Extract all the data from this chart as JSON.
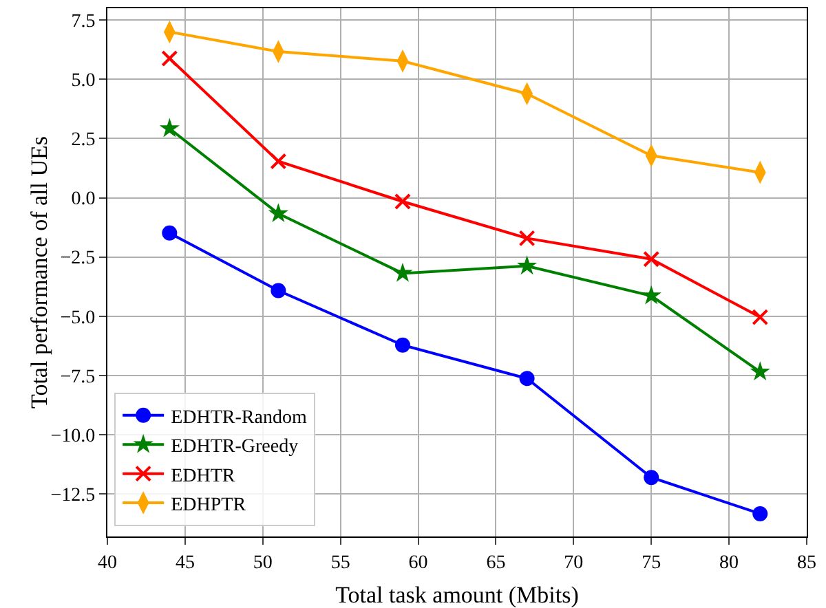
{
  "chart_data": {
    "type": "line",
    "xlabel": "Total task amount (Mbits)",
    "ylabel": "Total performance of all UEs",
    "x": [
      44,
      51,
      59,
      67,
      75,
      82
    ],
    "series": [
      {
        "name": "EDHTR-Random",
        "color": "#0000ff",
        "marker": "circle",
        "values": [
          -1.49,
          -3.92,
          -6.22,
          -7.63,
          -11.81,
          -13.34
        ]
      },
      {
        "name": "EDHTR-Greedy",
        "color": "#008000",
        "marker": "star",
        "values": [
          2.92,
          -0.67,
          -3.19,
          -2.88,
          -4.14,
          -7.35
        ]
      },
      {
        "name": "EDHTR",
        "color": "#ff0000",
        "marker": "cross",
        "values": [
          5.88,
          1.54,
          -0.16,
          -1.71,
          -2.59,
          -5.04
        ]
      },
      {
        "name": "EDHPTR",
        "color": "#ffa500",
        "marker": "diamond",
        "values": [
          7.0,
          6.17,
          5.77,
          4.39,
          1.78,
          1.07
        ]
      }
    ],
    "xlim": [
      40,
      85
    ],
    "xticks": [
      40,
      45,
      50,
      55,
      60,
      65,
      70,
      75,
      80,
      85
    ],
    "ylim": [
      -14.3,
      8.0
    ],
    "yticks": [
      {
        "value": -12.5,
        "label": "−12.5"
      },
      {
        "value": -10,
        "label": "−10.0"
      },
      {
        "value": -7.5,
        "label": "−7.5"
      },
      {
        "value": -5,
        "label": "−5.0"
      },
      {
        "value": -2.5,
        "label": "−2.5"
      },
      {
        "value": 0,
        "label": "0.0"
      },
      {
        "value": 2.5,
        "label": "2.5"
      },
      {
        "value": 5,
        "label": "5.0"
      },
      {
        "value": 7.5,
        "label": "7.5"
      }
    ],
    "grid": true,
    "legend": "bottom left",
    "line_style": "solid"
  }
}
